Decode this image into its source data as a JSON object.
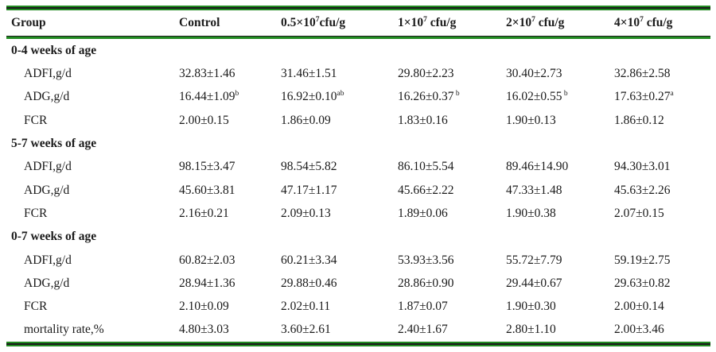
{
  "colors": {
    "border_green": "#228B22",
    "border_dark": "#1a1a1a",
    "text": "#1b1b1b",
    "background": "#ffffff"
  },
  "table": {
    "header": [
      {
        "pre": "Group",
        "sup": "",
        "post": ""
      },
      {
        "pre": "Control",
        "sup": "",
        "post": ""
      },
      {
        "pre": "0.5×10",
        "sup": "7",
        "post": "cfu/g"
      },
      {
        "pre": "1×10",
        "sup": "7",
        "post": " cfu/g"
      },
      {
        "pre": "2×10",
        "sup": "7",
        "post": " cfu/g"
      },
      {
        "pre": "4×10",
        "sup": "7",
        "post": " cfu/g"
      }
    ],
    "sections": [
      {
        "title": "0-4 weeks of age",
        "rows": [
          {
            "label": "ADFI,g/d",
            "values": [
              {
                "v": "32.83±1.46",
                "sup": ""
              },
              {
                "v": "31.46±1.51",
                "sup": ""
              },
              {
                "v": "29.80±2.23",
                "sup": ""
              },
              {
                "v": "30.40±2.73",
                "sup": ""
              },
              {
                "v": "32.86±2.58",
                "sup": ""
              }
            ]
          },
          {
            "label": "ADG,g/d",
            "values": [
              {
                "v": "16.44±1.09",
                "sup": "b"
              },
              {
                "v": "16.92±0.10",
                "sup": "ab"
              },
              {
                "v": "16.26±0.37",
                "sup": " b"
              },
              {
                "v": "16.02±0.55",
                "sup": " b"
              },
              {
                "v": "17.63±0.27",
                "sup": "a"
              }
            ]
          },
          {
            "label": "FCR",
            "values": [
              {
                "v": "2.00±0.15",
                "sup": ""
              },
              {
                "v": "1.86±0.09",
                "sup": ""
              },
              {
                "v": "1.83±0.16",
                "sup": ""
              },
              {
                "v": "1.90±0.13",
                "sup": ""
              },
              {
                "v": "1.86±0.12",
                "sup": ""
              }
            ]
          }
        ]
      },
      {
        "title": "5-7 weeks of age",
        "rows": [
          {
            "label": "ADFI,g/d",
            "values": [
              {
                "v": "98.15±3.47",
                "sup": ""
              },
              {
                "v": "98.54±5.82",
                "sup": ""
              },
              {
                "v": "86.10±5.54",
                "sup": ""
              },
              {
                "v": "89.46±14.90",
                "sup": ""
              },
              {
                "v": "94.30±3.01",
                "sup": ""
              }
            ]
          },
          {
            "label": "ADG,g/d",
            "values": [
              {
                "v": "45.60±3.81",
                "sup": ""
              },
              {
                "v": "47.17±1.17",
                "sup": ""
              },
              {
                "v": "45.66±2.22",
                "sup": ""
              },
              {
                "v": "47.33±1.48",
                "sup": ""
              },
              {
                "v": "45.63±2.26",
                "sup": ""
              }
            ]
          },
          {
            "label": "FCR",
            "values": [
              {
                "v": "2.16±0.21",
                "sup": ""
              },
              {
                "v": "2.09±0.13",
                "sup": ""
              },
              {
                "v": "1.89±0.06",
                "sup": ""
              },
              {
                "v": "1.90±0.38",
                "sup": ""
              },
              {
                "v": "2.07±0.15",
                "sup": ""
              }
            ]
          }
        ]
      },
      {
        "title": "0-7 weeks of age",
        "rows": [
          {
            "label": "ADFI,g/d",
            "values": [
              {
                "v": "60.82±2.03",
                "sup": ""
              },
              {
                "v": "60.21±3.34",
                "sup": ""
              },
              {
                "v": "53.93±3.56",
                "sup": ""
              },
              {
                "v": "55.72±7.79",
                "sup": ""
              },
              {
                "v": "59.19±2.75",
                "sup": ""
              }
            ]
          },
          {
            "label": "ADG,g/d",
            "values": [
              {
                "v": "28.94±1.36",
                "sup": ""
              },
              {
                "v": "29.88±0.46",
                "sup": ""
              },
              {
                "v": "28.86±0.90",
                "sup": ""
              },
              {
                "v": "29.44±0.67",
                "sup": ""
              },
              {
                "v": "29.63±0.82",
                "sup": ""
              }
            ]
          },
          {
            "label": "FCR",
            "values": [
              {
                "v": "2.10±0.09",
                "sup": ""
              },
              {
                "v": "2.02±0.11",
                "sup": ""
              },
              {
                "v": "1.87±0.07",
                "sup": ""
              },
              {
                "v": "1.90±0.30",
                "sup": ""
              },
              {
                "v": "2.00±0.14",
                "sup": ""
              }
            ]
          },
          {
            "label": "mortality rate,%",
            "values": [
              {
                "v": "4.80±3.03",
                "sup": ""
              },
              {
                "v": "3.60±2.61",
                "sup": ""
              },
              {
                "v": "2.40±1.67",
                "sup": ""
              },
              {
                "v": "2.80±1.10",
                "sup": ""
              },
              {
                "v": "2.00±3.46",
                "sup": ""
              }
            ]
          }
        ]
      }
    ]
  }
}
